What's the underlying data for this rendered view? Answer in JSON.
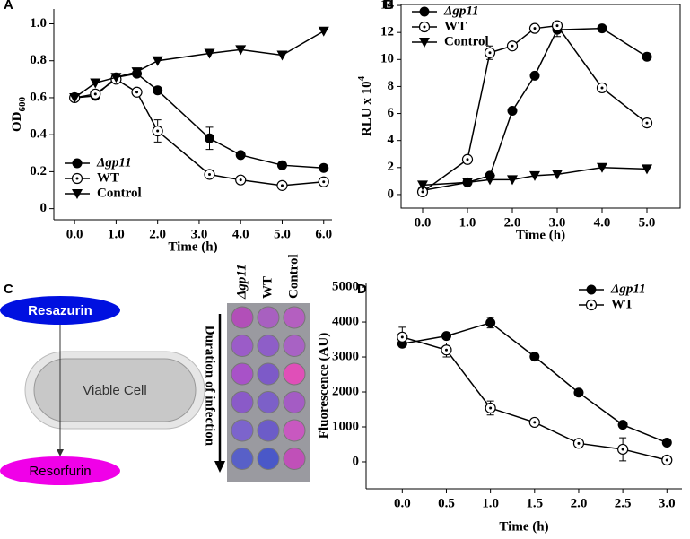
{
  "chart_data": [
    {
      "type": "line",
      "panel": "A",
      "xlabel": "Time (h)",
      "ylabel": "OD",
      "ylabel_sub": "600",
      "x": [
        0,
        0.5,
        1,
        1.5,
        2,
        3.25,
        4,
        5,
        6
      ],
      "series": [
        {
          "name": "Δgp11",
          "marker": "filled-circle",
          "color": "#000000",
          "values": [
            0.6,
            0.61,
            0.71,
            0.73,
            0.64,
            0.38,
            0.29,
            0.235,
            0.22
          ],
          "errors": [
            null,
            null,
            0.02,
            null,
            null,
            0.06,
            null,
            null,
            null
          ]
        },
        {
          "name": "WT",
          "marker": "open-circle",
          "color": "#000000",
          "values": [
            0.6,
            0.62,
            0.7,
            0.63,
            0.42,
            0.185,
            0.155,
            0.125,
            0.145
          ],
          "errors": [
            null,
            null,
            null,
            null,
            0.06,
            null,
            null,
            null,
            null
          ]
        },
        {
          "name": "Control",
          "marker": "triangle-down",
          "color": "#000000",
          "values": [
            0.6,
            0.68,
            0.71,
            0.74,
            0.8,
            0.84,
            0.86,
            0.83,
            0.96
          ],
          "errors": [
            null,
            null,
            null,
            null,
            null,
            null,
            null,
            null,
            null
          ]
        }
      ],
      "xlim": [
        -0.5,
        6.2
      ],
      "ylim": [
        -0.06,
        1.08
      ],
      "xticks": [
        {
          "value": 0,
          "label": "0.0"
        },
        {
          "value": 1,
          "label": "1.0"
        },
        {
          "value": 2,
          "label": "2.0"
        },
        {
          "value": 3,
          "label": "3.0"
        },
        {
          "value": 4,
          "label": "4.0"
        },
        {
          "value": 5,
          "label": "5.0"
        },
        {
          "value": 6,
          "label": "6.0"
        }
      ],
      "yticks": [
        0,
        0.2,
        0.4,
        0.6,
        0.8,
        {
          "value": 1,
          "label": "1.0"
        }
      ],
      "frame": "axes",
      "legend": "lower left"
    },
    {
      "type": "line",
      "panel": "B",
      "xlabel": "Time (h)",
      "ylabel": "RLU x 10",
      "ylabel_sup": "4",
      "x": [
        0,
        1,
        1.5,
        2,
        2.5,
        3,
        4,
        5
      ],
      "series": [
        {
          "name": "Δgp11",
          "marker": "filled-circle",
          "color": "#000000",
          "values": [
            0.3,
            0.9,
            1.4,
            6.2,
            8.8,
            12.2,
            12.3,
            10.2
          ],
          "errors": [
            null,
            null,
            null,
            null,
            null,
            0.5,
            null,
            null
          ]
        },
        {
          "name": "WT",
          "marker": "open-circle",
          "color": "#000000",
          "values": [
            0.2,
            2.6,
            10.5,
            11,
            12.3,
            12.5,
            7.9,
            5.3
          ],
          "errors": [
            null,
            null,
            0.5,
            null,
            null,
            null,
            null,
            null
          ]
        },
        {
          "name": "Control",
          "marker": "triangle-down",
          "color": "#000000",
          "values": [
            0.7,
            0.9,
            1.1,
            1.1,
            1.4,
            1.5,
            2,
            1.9
          ],
          "errors": [
            null,
            null,
            null,
            null,
            null,
            null,
            null,
            null
          ]
        }
      ],
      "xlim": [
        -0.48,
        5.74
      ],
      "ylim": [
        -1,
        14.07
      ],
      "xticks": [
        {
          "value": 0,
          "label": "0.0"
        },
        {
          "value": 1,
          "label": "1.0"
        },
        {
          "value": 2,
          "label": "2.0"
        },
        {
          "value": 3,
          "label": "3.0"
        },
        {
          "value": 4,
          "label": "4.0"
        },
        {
          "value": 5,
          "label": "5.0"
        }
      ],
      "yticks": [
        0,
        2,
        4,
        6,
        8,
        10,
        12,
        14
      ],
      "frame": "box",
      "legend": "upper left"
    },
    {
      "type": "line",
      "panel": "D",
      "xlabel": "Time (h)",
      "ylabel": "Fluorescence (AU)",
      "x": [
        0,
        0.5,
        1,
        1.5,
        2,
        2.5,
        3
      ],
      "series": [
        {
          "name": "Δgp11",
          "marker": "filled-circle",
          "color": "#000000",
          "values": [
            3380,
            3600,
            3980,
            3010,
            1980,
            1060,
            550
          ],
          "errors": [
            null,
            null,
            150,
            null,
            null,
            null,
            null
          ]
        },
        {
          "name": "WT",
          "marker": "open-circle",
          "color": "#000000",
          "values": [
            3570,
            3200,
            1540,
            1130,
            530,
            360,
            50
          ],
          "errors": [
            280,
            200,
            200,
            null,
            null,
            330,
            null
          ]
        }
      ],
      "xlim": [
        -0.41,
        3.17
      ],
      "ylim": [
        -770,
        5130
      ],
      "xticks": [
        {
          "value": 0,
          "label": "0.0"
        },
        {
          "value": 0.5,
          "label": "0.5"
        },
        {
          "value": 1,
          "label": "1.0"
        },
        {
          "value": 1.5,
          "label": "1.5"
        },
        {
          "value": 2,
          "label": "2.0"
        },
        {
          "value": 2.5,
          "label": "2.5"
        },
        {
          "value": 3,
          "label": "3.0"
        }
      ],
      "yticks": [
        0,
        1000,
        2000,
        3000,
        4000,
        5000
      ],
      "frame": "axes",
      "legend": "upper right"
    }
  ],
  "diagram": {
    "panel": "C",
    "substrate": "Resazurin",
    "cell": "Viable Cell",
    "product": "Resorfurin",
    "axis_label": "Duration of infection",
    "columns": [
      "Δgp11",
      "WT",
      "Control"
    ]
  }
}
